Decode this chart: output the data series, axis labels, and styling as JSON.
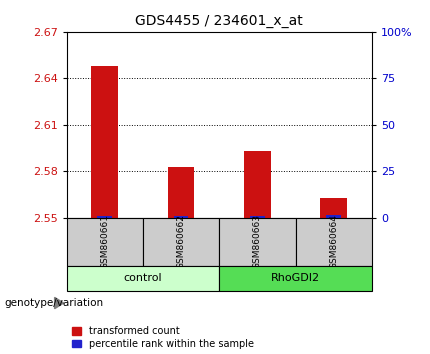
{
  "title": "GDS4455 / 234601_x_at",
  "samples": [
    "GSM860661",
    "GSM860662",
    "GSM860663",
    "GSM860664"
  ],
  "red_values": [
    2.648,
    2.583,
    2.593,
    2.563
  ],
  "blue_values": [
    2.551,
    2.551,
    2.551,
    2.552
  ],
  "groups": [
    {
      "label": "control",
      "n_samples": 2,
      "color": "#ccffcc"
    },
    {
      "label": "RhoGDI2",
      "n_samples": 2,
      "color": "#55dd55"
    }
  ],
  "ylim": [
    2.55,
    2.67
  ],
  "yticks_left": [
    2.55,
    2.58,
    2.61,
    2.64,
    2.67
  ],
  "yticks_right": [
    0,
    25,
    50,
    75,
    100
  ],
  "ytick_labels_left": [
    "2.55",
    "2.58",
    "2.61",
    "2.64",
    "2.67"
  ],
  "ytick_labels_right": [
    "0",
    "25",
    "50",
    "75",
    "100%"
  ],
  "bar_color_red": "#cc1111",
  "bar_color_blue": "#2222cc",
  "bar_width": 0.35,
  "label_box_color": "#cccccc",
  "legend_red": "transformed count",
  "legend_blue": "percentile rank within the sample",
  "genotype_label": "genotype/variation"
}
